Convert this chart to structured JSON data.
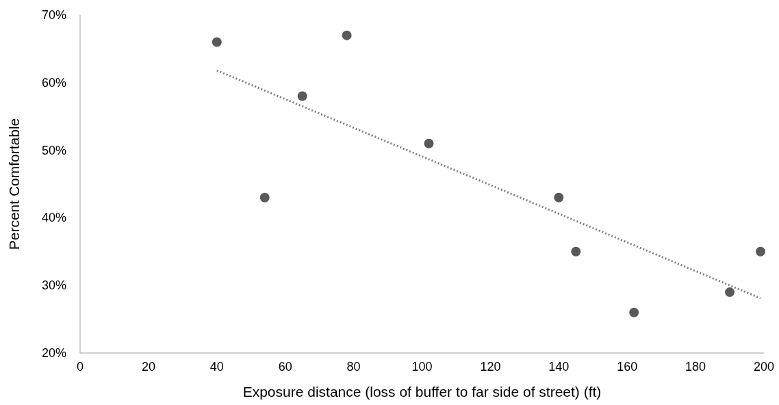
{
  "chart_data": {
    "type": "scatter",
    "xlabel": "Exposure distance (loss of buffer to far side of street) (ft)",
    "ylabel": "Percent Comfortable",
    "xlim": [
      0,
      200
    ],
    "xticks": [
      0,
      20,
      40,
      60,
      80,
      100,
      120,
      140,
      160,
      180,
      200
    ],
    "ylim": [
      20,
      70
    ],
    "yticks": [
      {
        "value": 20,
        "label": "20%"
      },
      {
        "value": 30,
        "label": "30%"
      },
      {
        "value": 40,
        "label": "40%"
      },
      {
        "value": 50,
        "label": "50%"
      },
      {
        "value": 60,
        "label": "60%"
      },
      {
        "value": 70,
        "label": "70%"
      }
    ],
    "grid": false,
    "marker": "circle",
    "series": [
      {
        "color": "#595959",
        "x": [
          40,
          54,
          65,
          78,
          102,
          140,
          145,
          162,
          190,
          199
        ],
        "values": [
          66,
          43,
          58,
          67,
          51,
          43,
          35,
          26,
          29,
          35
        ]
      },
      {
        "type": "line",
        "color": "#7f7f7f",
        "marker": "none",
        "line_style": "dotted",
        "x": [
          40,
          199
        ],
        "values": [
          61.8,
          28.1
        ]
      }
    ]
  }
}
